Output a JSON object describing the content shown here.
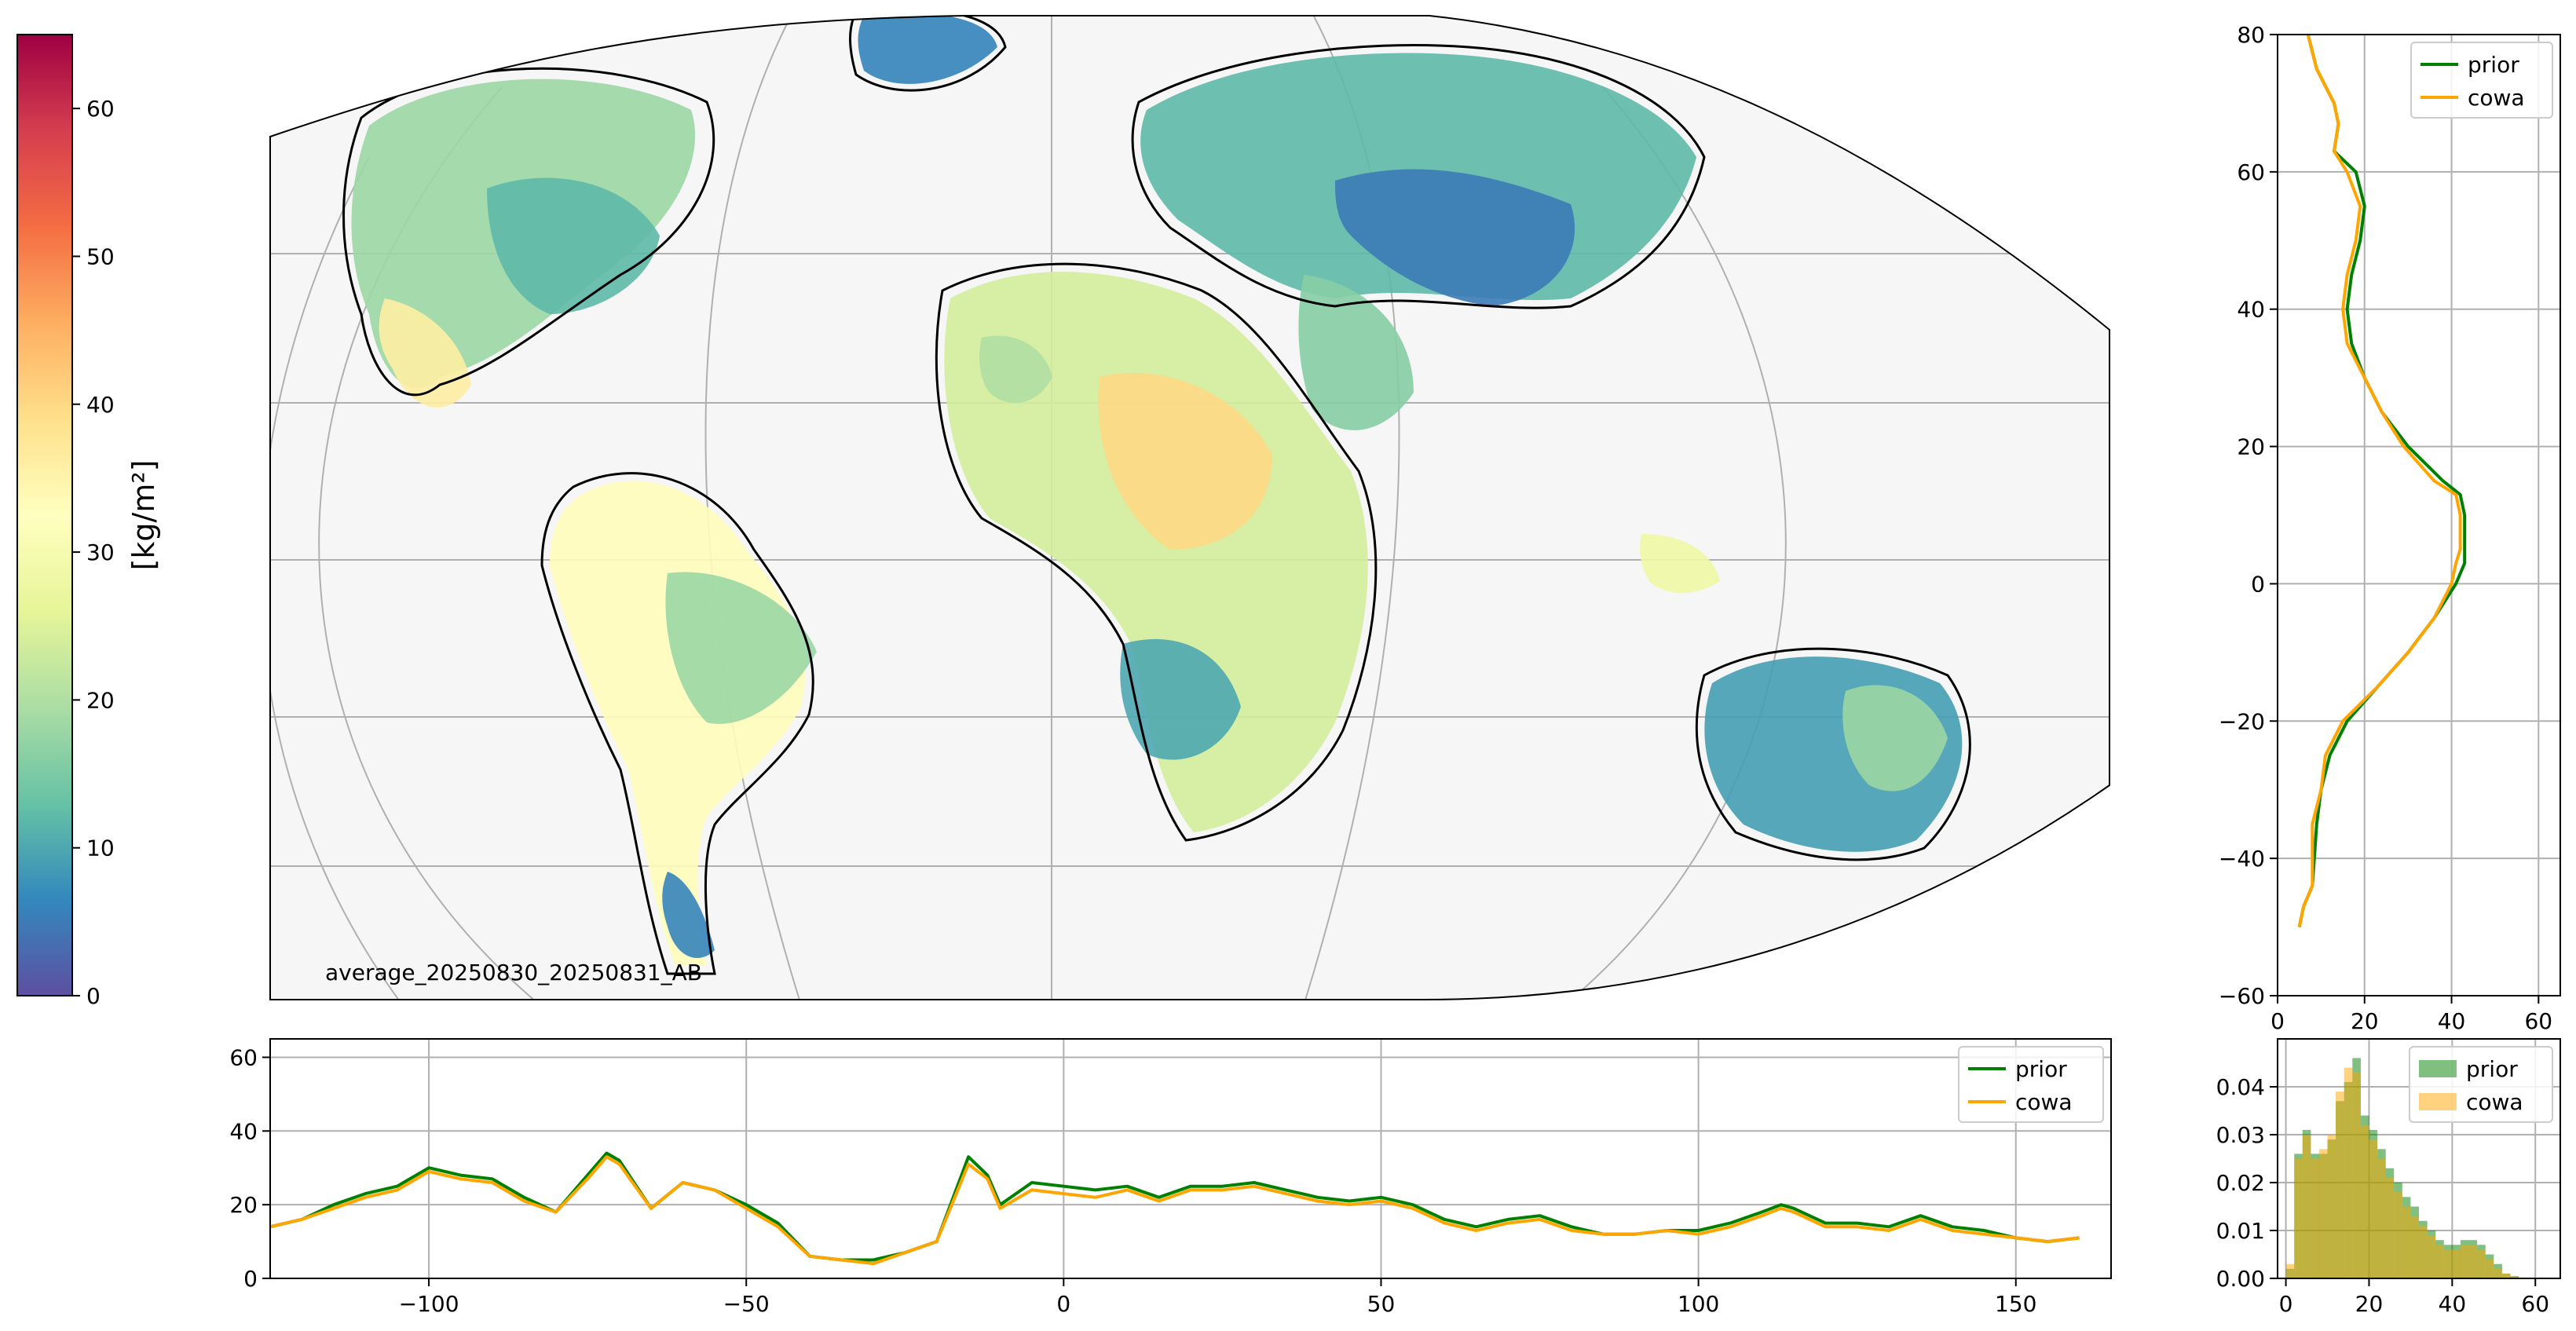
{
  "colorbar": {
    "label": "[kg/m²]",
    "range": [
      0,
      65
    ],
    "ticks": [
      0,
      10,
      20,
      30,
      40,
      50,
      60
    ],
    "colormap": [
      "#5e4fa2",
      "#3288bd",
      "#66c2a5",
      "#abdda4",
      "#e6f598",
      "#ffffbf",
      "#fee08b",
      "#fdae61",
      "#f46d43",
      "#d53e4f",
      "#9e0142"
    ]
  },
  "map": {
    "annotation": "average_20250830_20250831_AB",
    "background": "#f6f6f6",
    "gridline_color": "#b0b0b0"
  },
  "colors": {
    "prior": "#008000",
    "cowa": "#ffa500",
    "thin": "#74b9e0"
  },
  "chart_data": [
    {
      "type": "line",
      "name": "latitude-profile",
      "orientation": "vertical",
      "xlim": [
        0,
        65
      ],
      "ylim": [
        -60,
        80
      ],
      "xticks": [
        0,
        20,
        40,
        60
      ],
      "yticks": [
        -60,
        -40,
        -20,
        0,
        20,
        40,
        60,
        80
      ],
      "grid": true,
      "legend": "top-right",
      "series": [
        {
          "name": "prior",
          "lat": [
            -50,
            -47,
            -44,
            -35,
            -30,
            -25,
            -20,
            -15,
            -10,
            -5,
            0,
            3,
            5,
            10,
            13,
            15,
            20,
            25,
            30,
            35,
            40,
            45,
            50,
            55,
            60,
            63,
            67,
            70,
            75,
            80
          ],
          "values": [
            5,
            6,
            8,
            9,
            10,
            12,
            16,
            23,
            30,
            36,
            41,
            43,
            43,
            43,
            42,
            38,
            30,
            24,
            20,
            17,
            16,
            17,
            19,
            20,
            18,
            13,
            14,
            13,
            9,
            7
          ]
        },
        {
          "name": "cowa",
          "lat": [
            -50,
            -47,
            -44,
            -35,
            -30,
            -25,
            -20,
            -15,
            -10,
            -5,
            0,
            3,
            5,
            10,
            13,
            15,
            20,
            25,
            30,
            35,
            40,
            45,
            50,
            55,
            60,
            63,
            67,
            70,
            75,
            80
          ],
          "values": [
            5,
            6,
            8,
            8,
            10,
            11,
            15,
            23,
            30,
            36,
            40,
            41,
            42,
            42,
            41,
            36,
            29,
            24,
            20,
            16,
            15,
            16,
            18,
            19,
            16,
            13,
            14,
            13,
            9,
            7
          ]
        }
      ]
    },
    {
      "type": "line",
      "name": "longitude-profile",
      "xlim": [
        -125,
        165
      ],
      "ylim": [
        0,
        65
      ],
      "xticks": [
        -100,
        -50,
        0,
        50,
        100,
        150
      ],
      "yticks": [
        0,
        20,
        40,
        60
      ],
      "grid": true,
      "legend": "top-right",
      "series": [
        {
          "name": "prior",
          "x": [
            -125,
            -120,
            -115,
            -110,
            -105,
            -100,
            -95,
            -90,
            -85,
            -80,
            -75,
            -72,
            -70,
            -65,
            -60,
            -55,
            -50,
            -45,
            -40,
            -35,
            -30,
            -25,
            -20,
            -15,
            -12,
            -10,
            -5,
            0,
            5,
            10,
            15,
            20,
            25,
            30,
            35,
            40,
            45,
            50,
            55,
            60,
            65,
            70,
            75,
            80,
            85,
            90,
            95,
            100,
            105,
            110,
            113,
            115,
            120,
            125,
            130,
            135,
            140,
            145,
            150,
            155,
            160
          ],
          "values": [
            14,
            16,
            20,
            23,
            25,
            30,
            28,
            27,
            22,
            18,
            28,
            34,
            32,
            19,
            26,
            24,
            20,
            15,
            6,
            5,
            5,
            7,
            10,
            33,
            28,
            20,
            26,
            25,
            24,
            25,
            22,
            25,
            25,
            26,
            24,
            22,
            21,
            22,
            20,
            16,
            14,
            16,
            17,
            14,
            12,
            12,
            13,
            13,
            15,
            18,
            20,
            19,
            15,
            15,
            14,
            17,
            14,
            13,
            11,
            10,
            11
          ]
        },
        {
          "name": "cowa",
          "x": [
            -125,
            -120,
            -115,
            -110,
            -105,
            -100,
            -95,
            -90,
            -85,
            -80,
            -75,
            -72,
            -70,
            -65,
            -60,
            -55,
            -50,
            -45,
            -40,
            -35,
            -30,
            -25,
            -20,
            -15,
            -12,
            -10,
            -5,
            0,
            5,
            10,
            15,
            20,
            25,
            30,
            35,
            40,
            45,
            50,
            55,
            60,
            65,
            70,
            75,
            80,
            85,
            90,
            95,
            100,
            105,
            110,
            113,
            115,
            120,
            125,
            130,
            135,
            140,
            145,
            150,
            155,
            160
          ],
          "values": [
            14,
            16,
            19,
            22,
            24,
            29,
            27,
            26,
            21,
            18,
            27,
            33,
            31,
            19,
            26,
            24,
            19,
            14,
            6,
            5,
            4,
            7,
            10,
            31,
            27,
            19,
            24,
            23,
            22,
            24,
            21,
            24,
            24,
            25,
            23,
            21,
            20,
            21,
            19,
            15,
            13,
            15,
            16,
            13,
            12,
            12,
            13,
            12,
            14,
            17,
            19,
            18,
            14,
            14,
            13,
            16,
            13,
            12,
            11,
            10,
            11
          ]
        }
      ]
    },
    {
      "type": "histogram",
      "name": "distribution",
      "xlim": [
        -2,
        66
      ],
      "ylim": [
        0,
        0.05
      ],
      "xticks": [
        0,
        20,
        40,
        60
      ],
      "yticks": [
        0,
        0.01,
        0.02,
        0.03,
        0.04
      ],
      "bin_width": 2,
      "grid": true,
      "legend": "top-right",
      "series": [
        {
          "name": "prior",
          "bins": [
            0,
            2,
            4,
            6,
            8,
            10,
            12,
            14,
            16,
            18,
            20,
            22,
            24,
            26,
            28,
            30,
            32,
            34,
            36,
            38,
            40,
            42,
            44,
            46,
            48,
            50,
            52,
            54
          ],
          "values": [
            0.002,
            0.026,
            0.031,
            0.026,
            0.026,
            0.029,
            0.037,
            0.041,
            0.046,
            0.034,
            0.031,
            0.027,
            0.023,
            0.02,
            0.017,
            0.015,
            0.012,
            0.01,
            0.008,
            0.007,
            0.007,
            0.008,
            0.008,
            0.007,
            0.005,
            0.003,
            0.001,
            0.0005
          ]
        },
        {
          "name": "cowa",
          "bins": [
            0,
            2,
            4,
            6,
            8,
            10,
            12,
            14,
            16,
            18,
            20,
            22,
            24,
            26,
            28,
            30,
            32,
            34,
            36,
            38,
            40,
            42,
            44,
            46,
            48,
            50,
            52,
            54
          ],
          "values": [
            0.003,
            0.025,
            0.03,
            0.025,
            0.027,
            0.03,
            0.039,
            0.044,
            0.043,
            0.032,
            0.029,
            0.025,
            0.021,
            0.018,
            0.015,
            0.013,
            0.011,
            0.009,
            0.007,
            0.006,
            0.006,
            0.007,
            0.007,
            0.006,
            0.004,
            0.002,
            0.001,
            0.0005
          ]
        }
      ]
    }
  ]
}
